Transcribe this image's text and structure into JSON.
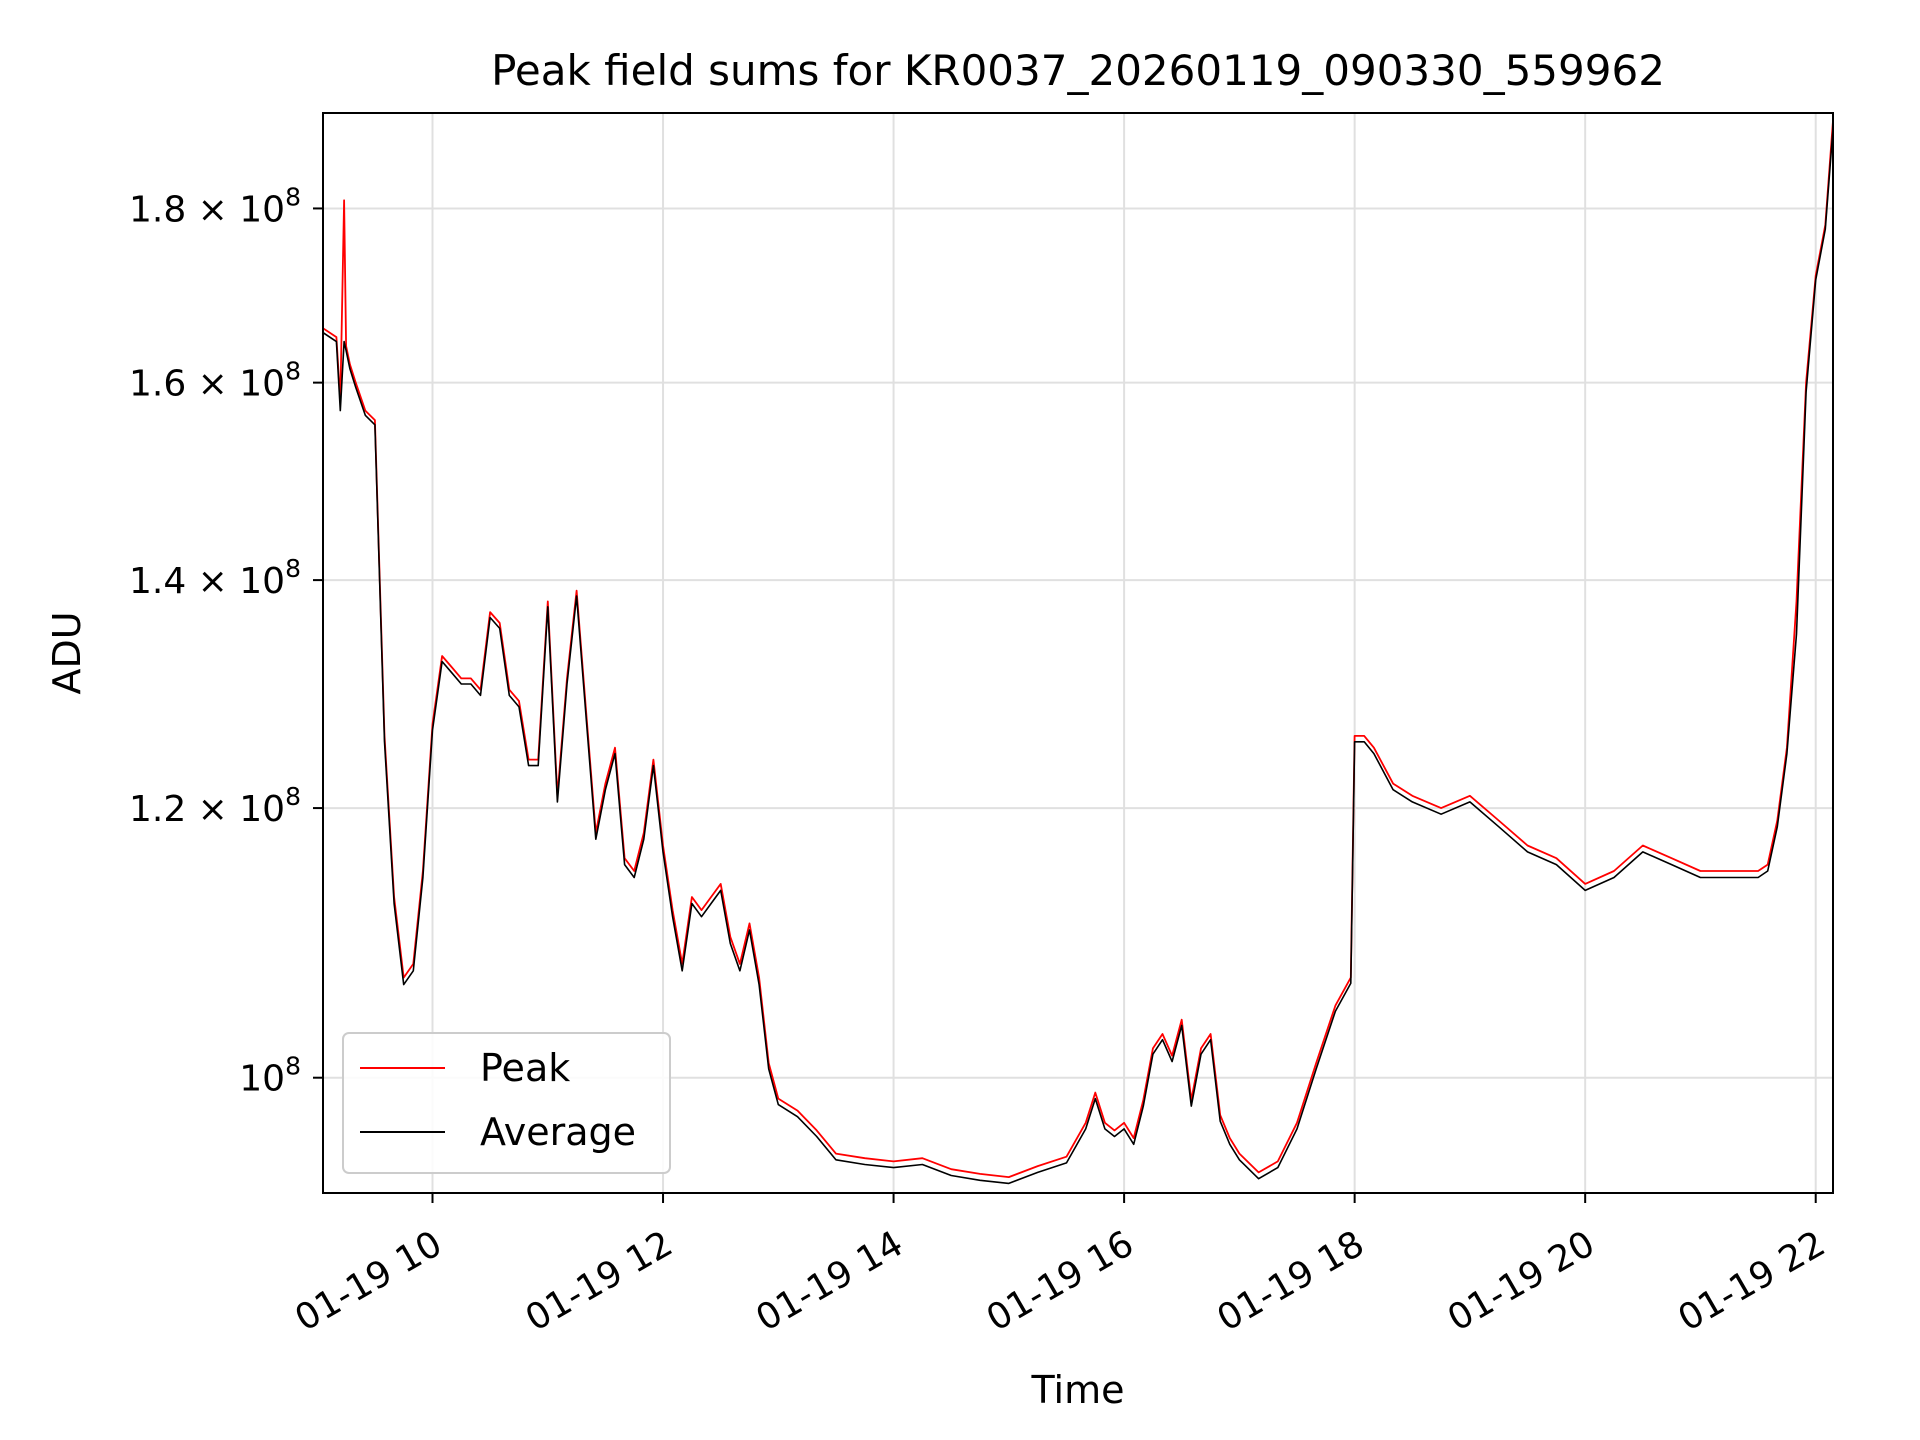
{
  "chart_data": {
    "type": "line",
    "title": "Peak field sums for KR0037_20260119_090330_559962",
    "xlabel": "Time",
    "ylabel": "ADU",
    "yscale": "log",
    "grid": true,
    "legend_placement": "lower left",
    "xlim": [
      "2026-01-19 09:03",
      "2026-01-19 22:09"
    ],
    "ylim": [
      92500000,
      192000000
    ],
    "x_ticks": [
      {
        "value": "2026-01-19 10:00",
        "label": "01-19 10"
      },
      {
        "value": "2026-01-19 12:00",
        "label": "01-19 12"
      },
      {
        "value": "2026-01-19 14:00",
        "label": "01-19 14"
      },
      {
        "value": "2026-01-19 16:00",
        "label": "01-19 16"
      },
      {
        "value": "2026-01-19 18:00",
        "label": "01-19 18"
      },
      {
        "value": "2026-01-19 20:00",
        "label": "01-19 20"
      },
      {
        "value": "2026-01-19 22:00",
        "label": "01-19 22"
      }
    ],
    "y_ticks": [
      {
        "value": 100000000,
        "label": "10",
        "exp": "8"
      },
      {
        "value": 120000000,
        "label": "1.2 × 10",
        "exp": "8"
      },
      {
        "value": 140000000,
        "label": "1.4 × 10",
        "exp": "8"
      },
      {
        "value": 160000000,
        "label": "1.6 × 10",
        "exp": "8"
      },
      {
        "value": 180000000,
        "label": "1.8 × 10",
        "exp": "8"
      }
    ],
    "series": [
      {
        "name": "Peak",
        "color": "#ff0000",
        "x": [
          "2026-01-19 09:03",
          "2026-01-19 09:10",
          "2026-01-19 09:12",
          "2026-01-19 09:14",
          "2026-01-19 09:15",
          "2026-01-19 09:16",
          "2026-01-19 09:17",
          "2026-01-19 09:20",
          "2026-01-19 09:25",
          "2026-01-19 09:30",
          "2026-01-19 09:35",
          "2026-01-19 09:40",
          "2026-01-19 09:45",
          "2026-01-19 09:50",
          "2026-01-19 09:55",
          "2026-01-19 10:00",
          "2026-01-19 10:05",
          "2026-01-19 10:10",
          "2026-01-19 10:15",
          "2026-01-19 10:20",
          "2026-01-19 10:25",
          "2026-01-19 10:30",
          "2026-01-19 10:35",
          "2026-01-19 10:40",
          "2026-01-19 10:45",
          "2026-01-19 10:50",
          "2026-01-19 10:55",
          "2026-01-19 11:00",
          "2026-01-19 11:05",
          "2026-01-19 11:10",
          "2026-01-19 11:15",
          "2026-01-19 11:20",
          "2026-01-19 11:25",
          "2026-01-19 11:30",
          "2026-01-19 11:35",
          "2026-01-19 11:40",
          "2026-01-19 11:45",
          "2026-01-19 11:50",
          "2026-01-19 11:55",
          "2026-01-19 12:00",
          "2026-01-19 12:05",
          "2026-01-19 12:10",
          "2026-01-19 12:15",
          "2026-01-19 12:20",
          "2026-01-19 12:25",
          "2026-01-19 12:30",
          "2026-01-19 12:35",
          "2026-01-19 12:40",
          "2026-01-19 12:45",
          "2026-01-19 12:50",
          "2026-01-19 12:55",
          "2026-01-19 13:00",
          "2026-01-19 13:10",
          "2026-01-19 13:20",
          "2026-01-19 13:30",
          "2026-01-19 13:45",
          "2026-01-19 14:00",
          "2026-01-19 14:15",
          "2026-01-19 14:30",
          "2026-01-19 14:45",
          "2026-01-19 15:00",
          "2026-01-19 15:15",
          "2026-01-19 15:30",
          "2026-01-19 15:40",
          "2026-01-19 15:45",
          "2026-01-19 15:50",
          "2026-01-19 15:55",
          "2026-01-19 16:00",
          "2026-01-19 16:05",
          "2026-01-19 16:10",
          "2026-01-19 16:15",
          "2026-01-19 16:20",
          "2026-01-19 16:25",
          "2026-01-19 16:30",
          "2026-01-19 16:35",
          "2026-01-19 16:40",
          "2026-01-19 16:45",
          "2026-01-19 16:50",
          "2026-01-19 16:55",
          "2026-01-19 17:00",
          "2026-01-19 17:10",
          "2026-01-19 17:20",
          "2026-01-19 17:30",
          "2026-01-19 17:40",
          "2026-01-19 17:50",
          "2026-01-19 17:58",
          "2026-01-19 18:00",
          "2026-01-19 18:05",
          "2026-01-19 18:10",
          "2026-01-19 18:20",
          "2026-01-19 18:30",
          "2026-01-19 18:45",
          "2026-01-19 19:00",
          "2026-01-19 19:15",
          "2026-01-19 19:30",
          "2026-01-19 19:45",
          "2026-01-19 20:00",
          "2026-01-19 20:15",
          "2026-01-19 20:30",
          "2026-01-19 20:45",
          "2026-01-19 21:00",
          "2026-01-19 21:15",
          "2026-01-19 21:25",
          "2026-01-19 21:30",
          "2026-01-19 21:35",
          "2026-01-19 21:40",
          "2026-01-19 21:45",
          "2026-01-19 21:50",
          "2026-01-19 21:55",
          "2026-01-19 22:00",
          "2026-01-19 22:05",
          "2026-01-19 22:09"
        ],
        "y": [
          166000000,
          165000000,
          158000000,
          181000000,
          164000000,
          163000000,
          162000000,
          160000000,
          157000000,
          156000000,
          126000000,
          113000000,
          107000000,
          108000000,
          115000000,
          127000000,
          133000000,
          132000000,
          131000000,
          131000000,
          130000000,
          137000000,
          136000000,
          130000000,
          129000000,
          124000000,
          124000000,
          138000000,
          121000000,
          131000000,
          139000000,
          128000000,
          118000000,
          122000000,
          125000000,
          116000000,
          115000000,
          118000000,
          124000000,
          117000000,
          112000000,
          108000000,
          113000000,
          112000000,
          113000000,
          114000000,
          110000000,
          108000000,
          111000000,
          107000000,
          101000000,
          98600000,
          97800000,
          96500000,
          95000000,
          94700000,
          94500000,
          94700000,
          94000000,
          93700000,
          93500000,
          94200000,
          94800000,
          97000000,
          99000000,
          97000000,
          96500000,
          97000000,
          96000000,
          98500000,
          102000000,
          103000000,
          101500000,
          104000000,
          98500000,
          102000000,
          103000000,
          97500000,
          96000000,
          95000000,
          93800000,
          94500000,
          97000000,
          101000000,
          105000000,
          107000000,
          126000000,
          126000000,
          125000000,
          122000000,
          121000000,
          120000000,
          121000000,
          119000000,
          117000000,
          116000000,
          114000000,
          115000000,
          117000000,
          116000000,
          115000000,
          115000000,
          115000000,
          115000000,
          115500000,
          119000000,
          125000000,
          138000000,
          160000000,
          172000000,
          178000000,
          191000000
        ]
      },
      {
        "name": "Average",
        "color": "#000000",
        "x": [
          "2026-01-19 09:03",
          "2026-01-19 09:10",
          "2026-01-19 09:12",
          "2026-01-19 09:14",
          "2026-01-19 09:15",
          "2026-01-19 09:16",
          "2026-01-19 09:17",
          "2026-01-19 09:20",
          "2026-01-19 09:25",
          "2026-01-19 09:30",
          "2026-01-19 09:35",
          "2026-01-19 09:40",
          "2026-01-19 09:45",
          "2026-01-19 09:50",
          "2026-01-19 09:55",
          "2026-01-19 10:00",
          "2026-01-19 10:05",
          "2026-01-19 10:10",
          "2026-01-19 10:15",
          "2026-01-19 10:20",
          "2026-01-19 10:25",
          "2026-01-19 10:30",
          "2026-01-19 10:35",
          "2026-01-19 10:40",
          "2026-01-19 10:45",
          "2026-01-19 10:50",
          "2026-01-19 10:55",
          "2026-01-19 11:00",
          "2026-01-19 11:05",
          "2026-01-19 11:10",
          "2026-01-19 11:15",
          "2026-01-19 11:20",
          "2026-01-19 11:25",
          "2026-01-19 11:30",
          "2026-01-19 11:35",
          "2026-01-19 11:40",
          "2026-01-19 11:45",
          "2026-01-19 11:50",
          "2026-01-19 11:55",
          "2026-01-19 12:00",
          "2026-01-19 12:05",
          "2026-01-19 12:10",
          "2026-01-19 12:15",
          "2026-01-19 12:20",
          "2026-01-19 12:25",
          "2026-01-19 12:30",
          "2026-01-19 12:35",
          "2026-01-19 12:40",
          "2026-01-19 12:45",
          "2026-01-19 12:50",
          "2026-01-19 12:55",
          "2026-01-19 13:00",
          "2026-01-19 13:10",
          "2026-01-19 13:20",
          "2026-01-19 13:30",
          "2026-01-19 13:45",
          "2026-01-19 14:00",
          "2026-01-19 14:15",
          "2026-01-19 14:30",
          "2026-01-19 14:45",
          "2026-01-19 15:00",
          "2026-01-19 15:15",
          "2026-01-19 15:30",
          "2026-01-19 15:40",
          "2026-01-19 15:45",
          "2026-01-19 15:50",
          "2026-01-19 15:55",
          "2026-01-19 16:00",
          "2026-01-19 16:05",
          "2026-01-19 16:10",
          "2026-01-19 16:15",
          "2026-01-19 16:20",
          "2026-01-19 16:25",
          "2026-01-19 16:30",
          "2026-01-19 16:35",
          "2026-01-19 16:40",
          "2026-01-19 16:45",
          "2026-01-19 16:50",
          "2026-01-19 16:55",
          "2026-01-19 17:00",
          "2026-01-19 17:10",
          "2026-01-19 17:20",
          "2026-01-19 17:30",
          "2026-01-19 17:40",
          "2026-01-19 17:50",
          "2026-01-19 17:58",
          "2026-01-19 18:00",
          "2026-01-19 18:05",
          "2026-01-19 18:10",
          "2026-01-19 18:20",
          "2026-01-19 18:30",
          "2026-01-19 18:45",
          "2026-01-19 19:00",
          "2026-01-19 19:15",
          "2026-01-19 19:30",
          "2026-01-19 19:45",
          "2026-01-19 20:00",
          "2026-01-19 20:15",
          "2026-01-19 20:30",
          "2026-01-19 20:45",
          "2026-01-19 21:00",
          "2026-01-19 21:15",
          "2026-01-19 21:25",
          "2026-01-19 21:30",
          "2026-01-19 21:35",
          "2026-01-19 21:40",
          "2026-01-19 21:45",
          "2026-01-19 21:50",
          "2026-01-19 21:55",
          "2026-01-19 22:00",
          "2026-01-19 22:05",
          "2026-01-19 22:09"
        ],
        "y": [
          165500000,
          164500000,
          157000000,
          164500000,
          163500000,
          162500000,
          161500000,
          159500000,
          156500000,
          155500000,
          125500000,
          112500000,
          106500000,
          107500000,
          114500000,
          126500000,
          132500000,
          131500000,
          130500000,
          130500000,
          129500000,
          136500000,
          135500000,
          129500000,
          128500000,
          123500000,
          123500000,
          137500000,
          120500000,
          130500000,
          138500000,
          127500000,
          117500000,
          121500000,
          124500000,
          115500000,
          114500000,
          117500000,
          123500000,
          116500000,
          111500000,
          107500000,
          112500000,
          111500000,
          112500000,
          113500000,
          109500000,
          107500000,
          110500000,
          106500000,
          100600000,
          98200000,
          97400000,
          96100000,
          94600000,
          94300000,
          94100000,
          94300000,
          93600000,
          93300000,
          93100000,
          93800000,
          94400000,
          96600000,
          98600000,
          96600000,
          96100000,
          96600000,
          95600000,
          98100000,
          101600000,
          102600000,
          101100000,
          103600000,
          98100000,
          101600000,
          102600000,
          97100000,
          95600000,
          94600000,
          93400000,
          94100000,
          96600000,
          100600000,
          104600000,
          106600000,
          125500000,
          125500000,
          124500000,
          121500000,
          120500000,
          119500000,
          120500000,
          118500000,
          116500000,
          115500000,
          113500000,
          114500000,
          116500000,
          115500000,
          114500000,
          114500000,
          114500000,
          114500000,
          115000000,
          118500000,
          124500000,
          135000000,
          159000000,
          171500000,
          177500000,
          190000000
        ]
      }
    ]
  }
}
